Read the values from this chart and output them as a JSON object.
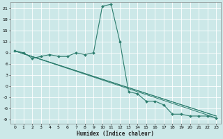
{
  "title": "",
  "xlabel": "Humidex (Indice chaleur)",
  "background_color": "#cce8e8",
  "grid_color": "#ffffff",
  "line_color": "#2d7d6e",
  "xlim": [
    -0.5,
    23.5
  ],
  "ylim": [
    -10,
    22.5
  ],
  "yticks": [
    -9,
    -6,
    -3,
    0,
    3,
    6,
    9,
    12,
    15,
    18,
    21
  ],
  "xticks": [
    0,
    1,
    2,
    3,
    4,
    5,
    6,
    7,
    8,
    9,
    10,
    11,
    12,
    13,
    14,
    15,
    16,
    17,
    18,
    19,
    20,
    21,
    22,
    23
  ],
  "series_main": {
    "x": [
      0,
      1,
      2,
      3,
      4,
      5,
      6,
      7,
      8,
      9,
      10,
      11,
      12,
      13,
      14,
      15,
      16,
      17,
      18,
      19,
      20,
      21,
      22,
      23
    ],
    "y": [
      9.5,
      9.0,
      7.5,
      8.0,
      8.5,
      8.0,
      8.0,
      9.0,
      8.5,
      9.0,
      21.5,
      22.0,
      12.0,
      -1.5,
      -2.0,
      -4.0,
      -4.0,
      -5.0,
      -7.5,
      -7.5,
      -8.0,
      -8.0,
      -8.0,
      -8.5
    ]
  },
  "series_lines": [
    {
      "x": [
        0,
        23
      ],
      "y": [
        9.5,
        -8.5
      ]
    },
    {
      "x": [
        0,
        23
      ],
      "y": [
        9.5,
        -8.0
      ]
    },
    {
      "x": [
        0,
        23
      ],
      "y": [
        9.5,
        -8.0
      ]
    }
  ],
  "label_fontsize": 4.5,
  "xlabel_fontsize": 5.5
}
